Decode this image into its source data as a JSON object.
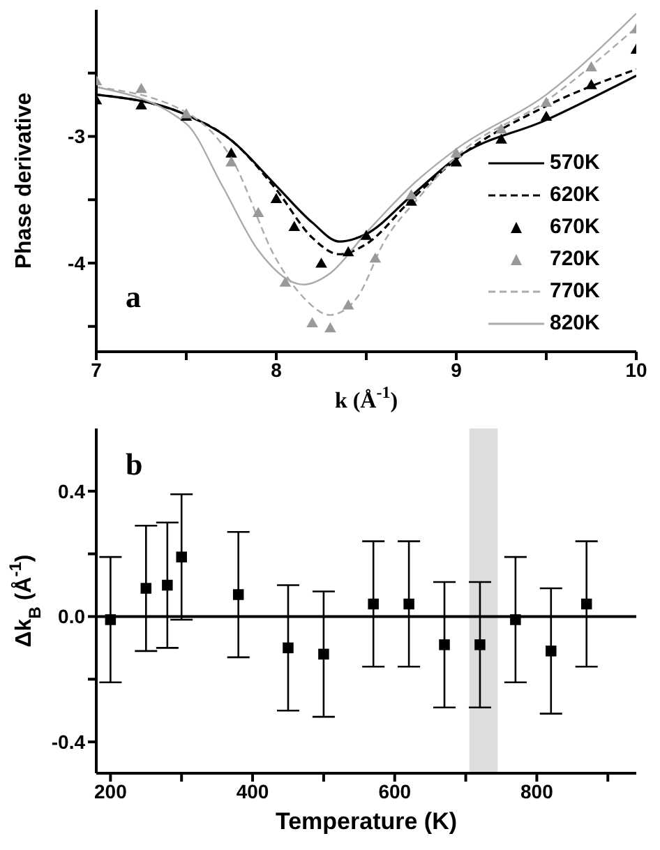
{
  "chart_data": [
    {
      "type": "line",
      "xlabel": "k (Å$^{-1}$)",
      "ylabel": "Phase derivative",
      "xlim": [
        7,
        10
      ],
      "ylim": [
        -4.7,
        -2.0
      ],
      "xticks": [
        7,
        {
          "value": 7.5,
          "label": null
        },
        8,
        {
          "value": 8.5,
          "label": null
        },
        9,
        {
          "value": 9.5,
          "label": null
        },
        10
      ],
      "yticks": [
        {
          "value": -2.5,
          "label": null
        },
        -3,
        {
          "value": -3.5,
          "label": null
        },
        -4,
        {
          "value": -4.5,
          "label": null
        }
      ],
      "legend": "right",
      "annotations": [
        "a"
      ],
      "series": [
        {
          "name": "570K",
          "line_style": "solid",
          "color": "#000000",
          "x": [
            7,
            7.5,
            7.75,
            8,
            8.2,
            8.35,
            8.5,
            8.75,
            9,
            9.5,
            10
          ],
          "values": [
            -2.67,
            -2.83,
            -3.03,
            -3.39,
            -3.68,
            -3.83,
            -3.77,
            -3.47,
            -3.17,
            -2.87,
            -2.52
          ]
        },
        {
          "name": "620K",
          "line_style": "dashed",
          "color": "#000000",
          "x": [
            7,
            7.5,
            7.75,
            8,
            8.2,
            8.35,
            8.5,
            8.75,
            9,
            9.5,
            10
          ],
          "values": [
            -2.67,
            -2.83,
            -3.03,
            -3.42,
            -3.8,
            -3.93,
            -3.85,
            -3.5,
            -3.18,
            -2.76,
            -2.47
          ]
        },
        {
          "name": "670K",
          "type": "scatter",
          "marker": "triangle",
          "color": "#000000",
          "x": [
            7,
            7.25,
            7.5,
            7.75,
            8,
            8.1,
            8.25,
            8.4,
            8.5,
            8.75,
            9,
            9.25,
            9.5,
            9.75,
            10
          ],
          "values": [
            -2.72,
            -2.76,
            -2.85,
            -3.14,
            -3.5,
            -3.72,
            -4.01,
            -3.92,
            -3.79,
            -3.52,
            -3.21,
            -3.03,
            -2.85,
            -2.6,
            -2.32
          ]
        },
        {
          "name": "720K",
          "type": "scatter",
          "marker": "triangle",
          "color": "#999999",
          "x": [
            7,
            7.25,
            7.5,
            7.75,
            7.9,
            8.05,
            8.2,
            8.3,
            8.4,
            8.55,
            8.75,
            9,
            9.25,
            9.5,
            9.75,
            10
          ],
          "values": [
            -2.57,
            -2.63,
            -2.83,
            -3.21,
            -3.61,
            -4.16,
            -4.48,
            -4.52,
            -4.34,
            -3.97,
            -3.47,
            -3.14,
            -2.95,
            -2.74,
            -2.46,
            -2.16
          ]
        },
        {
          "name": "770K",
          "line_style": "dashed",
          "color": "#aaaaaa",
          "x": [
            7,
            7.5,
            7.75,
            8,
            8.15,
            8.3,
            8.45,
            8.6,
            8.8,
            9,
            9.5,
            10
          ],
          "values": [
            -2.61,
            -2.81,
            -3.17,
            -3.97,
            -4.27,
            -4.41,
            -4.27,
            -3.83,
            -3.47,
            -3.16,
            -2.72,
            -2.14
          ]
        },
        {
          "name": "820K",
          "line_style": "solid",
          "color": "#aaaaaa",
          "x": [
            7,
            7.5,
            7.7,
            7.9,
            8.15,
            8.3,
            8.5,
            8.75,
            9,
            9.5,
            10
          ],
          "values": [
            -2.61,
            -2.9,
            -3.39,
            -3.9,
            -4.17,
            -4.08,
            -3.76,
            -3.39,
            -3.1,
            -2.67,
            -2.03
          ]
        }
      ]
    },
    {
      "type": "scatter",
      "marker": "square",
      "xlabel": "Temperature  (K)",
      "ylabel": "Δk$_{B}$ (Å$^{-1}$)",
      "xlim": [
        180,
        940
      ],
      "ylim": [
        -0.5,
        0.6
      ],
      "xticks": [
        200,
        {
          "value": 300,
          "label": null
        },
        400,
        {
          "value": 500,
          "label": null
        },
        600,
        {
          "value": 700,
          "label": null
        },
        800,
        {
          "value": 900,
          "label": null
        }
      ],
      "yticks": [
        -0.4,
        {
          "value": -0.2,
          "label": null
        },
        {
          "value": 0,
          "label": "0.0"
        },
        {
          "value": 0.2,
          "label": null
        },
        0.4
      ],
      "annotations": [
        "b"
      ],
      "x": [
        200,
        250,
        280,
        300,
        380,
        450,
        500,
        570,
        620,
        670,
        720,
        770,
        820,
        870
      ],
      "series": [
        {
          "color": "#000000",
          "values": [
            -0.01,
            0.09,
            0.1,
            0.19,
            0.07,
            -0.1,
            -0.12,
            0.04,
            0.04,
            -0.09,
            -0.09,
            -0.01,
            -0.11,
            0.04
          ],
          "errors": [
            0.2,
            0.2,
            0.2,
            0.2,
            0.2,
            0.2,
            0.2,
            0.2,
            0.2,
            0.2,
            0.2,
            0.2,
            0.2,
            0.2
          ]
        }
      ],
      "ref_lines": [
        {
          "axis": "y",
          "value": 0,
          "color": "#000000",
          "line_style": "solid"
        }
      ],
      "bands": [
        {
          "axis": "x",
          "from": 705,
          "to": 745,
          "color": "#bbbbbb"
        }
      ]
    }
  ]
}
